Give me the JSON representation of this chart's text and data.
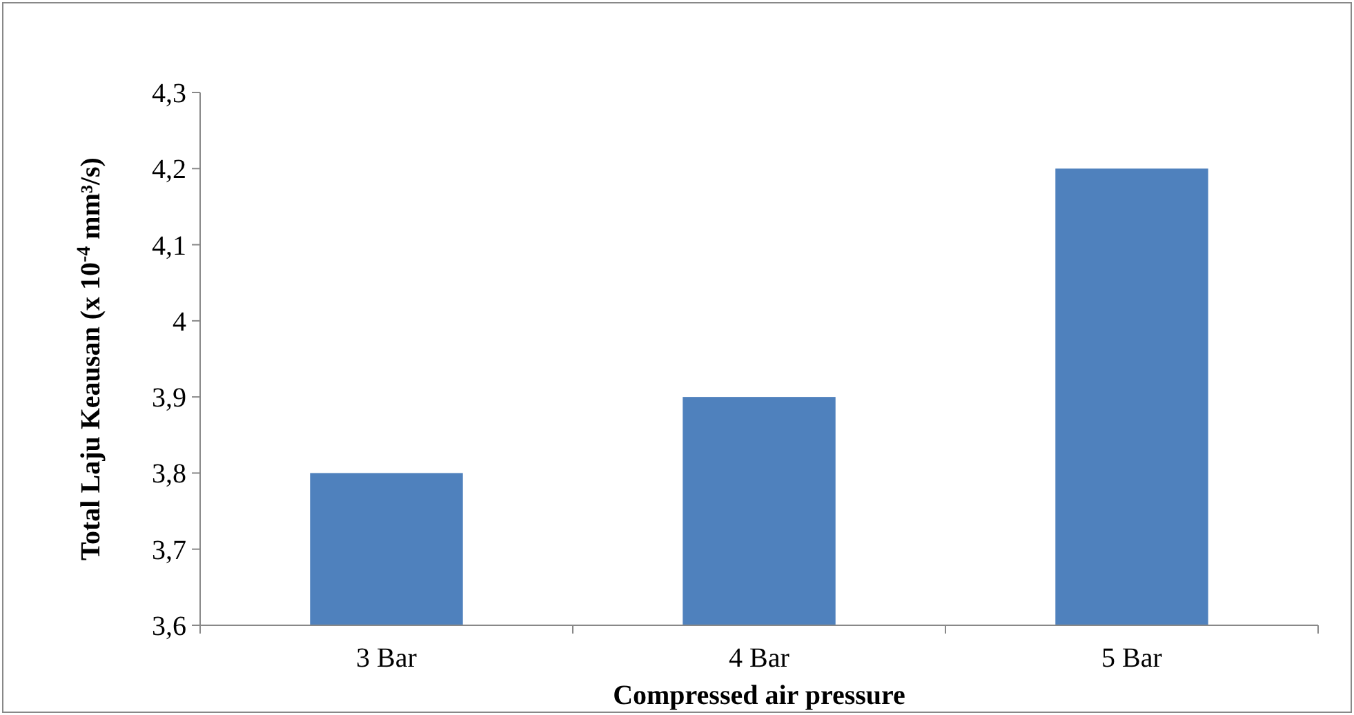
{
  "chart_data": {
    "type": "bar",
    "xlabel": "Compressed air pressure",
    "ylabel": "Total Laju Keausan (x 10$^{-4}$ mm³/s)",
    "categories": [
      "3 Bar",
      "4 Bar",
      "5 Bar"
    ],
    "values": [
      3.8,
      3.9,
      4.2
    ],
    "color": "#4f81bd",
    "ylim": [
      3.6,
      4.3
    ],
    "yticks": [
      {
        "value": 3.6,
        "label": "3,6"
      },
      {
        "value": 3.7,
        "label": "3,7"
      },
      {
        "value": 3.8,
        "label": "3,8"
      },
      {
        "value": 3.9,
        "label": "3,9"
      },
      4,
      {
        "value": 4.1,
        "label": "4,1"
      },
      {
        "value": 4.2,
        "label": "4,2"
      },
      {
        "value": 4.3,
        "label": "4,3"
      }
    ],
    "grid": false
  }
}
